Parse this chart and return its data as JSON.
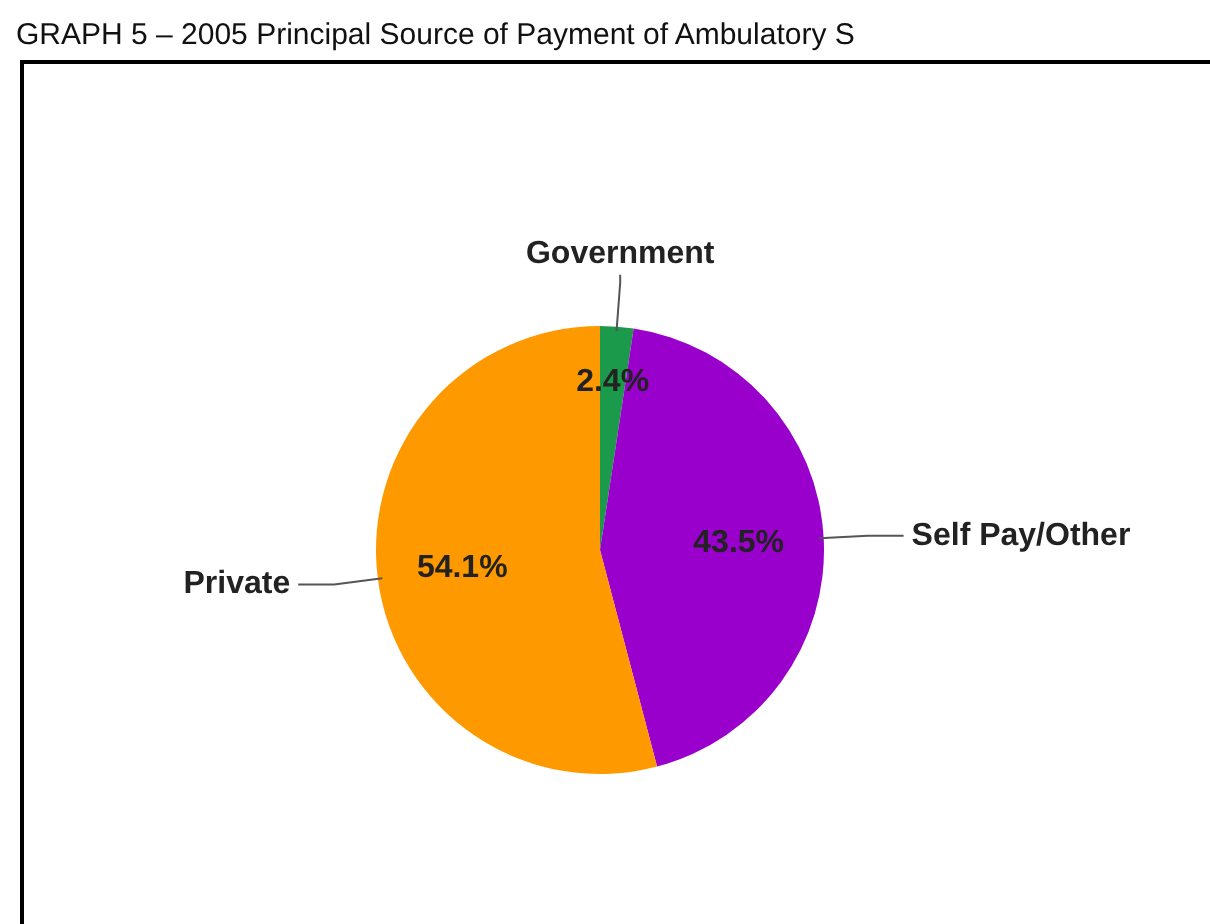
{
  "chart_data": {
    "type": "pie",
    "title": "GRAPH 5 – 2005 Principal Source of Payment of Ambulatory S",
    "categories": [
      "Government",
      "Self Pay/Other",
      "Private"
    ],
    "values": [
      2.4,
      43.5,
      54.1
    ],
    "colors": [
      "#1a9a4a",
      "#9900cc",
      "#ff9900"
    ],
    "value_labels": [
      "2.4%",
      "43.5%",
      "54.1%"
    ],
    "legend": false
  }
}
